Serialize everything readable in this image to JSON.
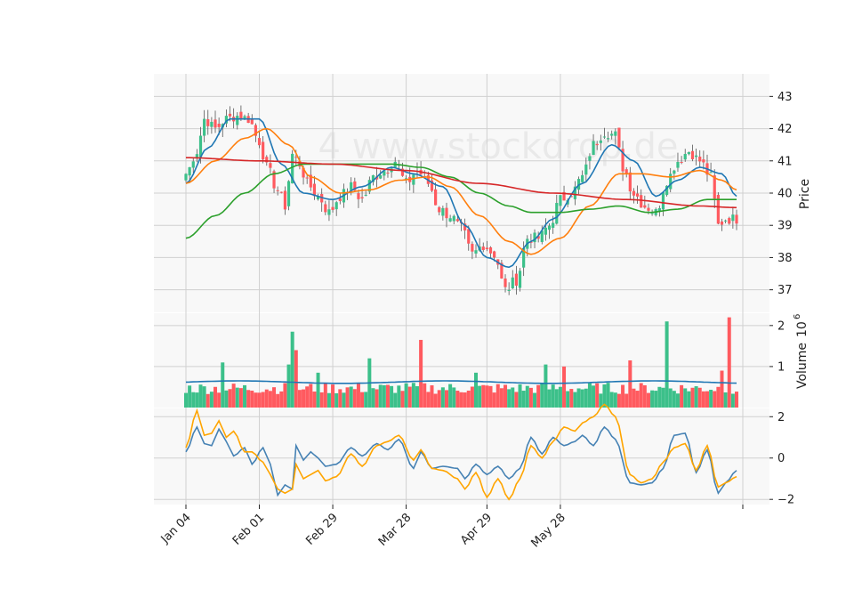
{
  "watermark": "4 www.stockdrop.de",
  "colors": {
    "up": "#3cc08a",
    "down": "#ff5a5f",
    "ma_blue": "#1f77b4",
    "ma_orange": "#ff7f0e",
    "ma_green": "#2ca02c",
    "ma_red": "#d62728",
    "osc_blue": "#4682b4",
    "osc_orange": "#ffa500",
    "vol_line": "#1f77b4",
    "panel_bg": "#f8f8f8",
    "grid": "#d0d0d0"
  },
  "chart_data": {
    "type": "candlestick",
    "x_ticks": [
      "Jan 04",
      "Feb 01",
      "Feb 29",
      "Mar 28",
      "Apr 29",
      "May 28"
    ],
    "price_panel": {
      "ylabel": "Price",
      "y_ticks": [
        37,
        38,
        39,
        40,
        41,
        42,
        43
      ],
      "ylim": [
        36.3,
        43.7
      ],
      "anchor_closes": [
        [
          0,
          40.6
        ],
        [
          3,
          41.3
        ],
        [
          5,
          42.3
        ],
        [
          8,
          42.0
        ],
        [
          11,
          42.3
        ],
        [
          14,
          42.4
        ],
        [
          17,
          42.3
        ],
        [
          20,
          41.6
        ],
        [
          22,
          40.8
        ],
        [
          25,
          40.1
        ],
        [
          27,
          39.6
        ],
        [
          29,
          41.2
        ],
        [
          31,
          40.9
        ],
        [
          33,
          40.3
        ],
        [
          36,
          39.9
        ],
        [
          39,
          39.4
        ],
        [
          42,
          39.9
        ],
        [
          45,
          40.2
        ],
        [
          48,
          39.8
        ],
        [
          51,
          40.5
        ],
        [
          54,
          40.7
        ],
        [
          57,
          41.0
        ],
        [
          60,
          40.3
        ],
        [
          63,
          40.7
        ],
        [
          66,
          40.3
        ],
        [
          69,
          39.5
        ],
        [
          72,
          39.3
        ],
        [
          75,
          38.9
        ],
        [
          78,
          38.1
        ],
        [
          81,
          38.4
        ],
        [
          84,
          38.1
        ],
        [
          87,
          37.0
        ],
        [
          90,
          37.3
        ],
        [
          93,
          38.6
        ],
        [
          96,
          38.6
        ],
        [
          99,
          39.0
        ],
        [
          102,
          39.8
        ],
        [
          105,
          40.0
        ],
        [
          108,
          40.5
        ],
        [
          111,
          41.5
        ],
        [
          114,
          41.9
        ],
        [
          117,
          41.8
        ],
        [
          119,
          40.8
        ],
        [
          122,
          40.0
        ],
        [
          125,
          39.6
        ],
        [
          128,
          39.4
        ],
        [
          131,
          40.4
        ],
        [
          134,
          41.0
        ],
        [
          137,
          41.3
        ],
        [
          140,
          41.0
        ],
        [
          143,
          40.5
        ],
        [
          145,
          39.0
        ],
        [
          147,
          39.2
        ],
        [
          150,
          39.2
        ]
      ],
      "series": [
        {
          "name": "ma_fast",
          "color_key": "ma_blue",
          "anchors": [
            [
              0,
              40.3
            ],
            [
              6,
              41.4
            ],
            [
              12,
              42.3
            ],
            [
              20,
              42.3
            ],
            [
              26,
              40.9
            ],
            [
              32,
              40.0
            ],
            [
              40,
              39.8
            ],
            [
              48,
              40.2
            ],
            [
              56,
              40.8
            ],
            [
              62,
              40.6
            ],
            [
              70,
              40.2
            ],
            [
              76,
              39.0
            ],
            [
              82,
              38.0
            ],
            [
              88,
              37.7
            ],
            [
              94,
              38.5
            ],
            [
              100,
              39.2
            ],
            [
              108,
              40.3
            ],
            [
              116,
              41.5
            ],
            [
              122,
              41.0
            ],
            [
              128,
              39.9
            ],
            [
              134,
              40.4
            ],
            [
              140,
              40.8
            ],
            [
              146,
              40.6
            ],
            [
              150,
              39.9
            ]
          ]
        },
        {
          "name": "ma_mid",
          "color_key": "ma_orange",
          "anchors": [
            [
              0,
              40.3
            ],
            [
              8,
              41.0
            ],
            [
              16,
              41.7
            ],
            [
              22,
              42.0
            ],
            [
              28,
              41.5
            ],
            [
              34,
              40.5
            ],
            [
              42,
              40.0
            ],
            [
              50,
              40.1
            ],
            [
              58,
              40.4
            ],
            [
              66,
              40.5
            ],
            [
              72,
              40.2
            ],
            [
              80,
              39.3
            ],
            [
              88,
              38.5
            ],
            [
              94,
              38.1
            ],
            [
              102,
              38.6
            ],
            [
              110,
              39.6
            ],
            [
              118,
              40.6
            ],
            [
              124,
              40.6
            ],
            [
              132,
              40.5
            ],
            [
              140,
              40.7
            ],
            [
              146,
              40.4
            ],
            [
              150,
              40.1
            ]
          ]
        },
        {
          "name": "ma_slow",
          "color_key": "ma_green",
          "anchors": [
            [
              0,
              38.6
            ],
            [
              8,
              39.3
            ],
            [
              16,
              40.0
            ],
            [
              24,
              40.6
            ],
            [
              32,
              40.9
            ],
            [
              40,
              40.9
            ],
            [
              48,
              40.9
            ],
            [
              56,
              40.9
            ],
            [
              64,
              40.8
            ],
            [
              72,
              40.5
            ],
            [
              80,
              40.0
            ],
            [
              88,
              39.6
            ],
            [
              94,
              39.4
            ],
            [
              102,
              39.4
            ],
            [
              110,
              39.5
            ],
            [
              118,
              39.6
            ],
            [
              126,
              39.4
            ],
            [
              134,
              39.5
            ],
            [
              142,
              39.8
            ],
            [
              150,
              39.8
            ]
          ]
        },
        {
          "name": "ma_long",
          "color_key": "ma_red",
          "anchors": [
            [
              0,
              41.1
            ],
            [
              20,
              41.0
            ],
            [
              40,
              40.9
            ],
            [
              60,
              40.7
            ],
            [
              80,
              40.3
            ],
            [
              100,
              40.0
            ],
            [
              120,
              39.8
            ],
            [
              140,
              39.6
            ],
            [
              150,
              39.55
            ]
          ]
        }
      ]
    },
    "volume_panel": {
      "ylabel": "Volume  10^6",
      "y_ticks": [
        1,
        2
      ],
      "ylim": [
        0,
        2.3
      ],
      "n_bars": 151,
      "base": 0.47,
      "spikes": [
        [
          10,
          1.1
        ],
        [
          28,
          1.05
        ],
        [
          29,
          1.85
        ],
        [
          30,
          1.4
        ],
        [
          36,
          0.85
        ],
        [
          50,
          1.2
        ],
        [
          64,
          1.65
        ],
        [
          79,
          0.85
        ],
        [
          98,
          1.05
        ],
        [
          103,
          1.0
        ],
        [
          121,
          1.15
        ],
        [
          131,
          2.1
        ],
        [
          148,
          2.2
        ],
        [
          146,
          0.9
        ]
      ],
      "avg_line": 0.62
    },
    "oscillator_panel": {
      "y_ticks": [
        -2,
        0,
        2
      ],
      "ylim": [
        -2.25,
        2.4
      ],
      "series": [
        {
          "name": "osc_fast",
          "color_key": "osc_blue",
          "anchors": [
            [
              0,
              0.3
            ],
            [
              3,
              1.5
            ],
            [
              5,
              0.7
            ],
            [
              7,
              0.6
            ],
            [
              9,
              1.4
            ],
            [
              11,
              0.8
            ],
            [
              13,
              0.1
            ],
            [
              16,
              0.5
            ],
            [
              18,
              -0.3
            ],
            [
              21,
              0.5
            ],
            [
              23,
              -0.3
            ],
            [
              25,
              -1.8
            ],
            [
              27,
              -1.3
            ],
            [
              29,
              -1.5
            ],
            [
              30,
              0.6
            ],
            [
              32,
              -0.1
            ],
            [
              34,
              0.3
            ],
            [
              36,
              0.0
            ],
            [
              38,
              -0.4
            ],
            [
              41,
              -0.3
            ],
            [
              45,
              0.5
            ],
            [
              48,
              0.1
            ],
            [
              52,
              0.7
            ],
            [
              55,
              0.4
            ],
            [
              58,
              0.9
            ],
            [
              62,
              -0.5
            ],
            [
              64,
              0.3
            ],
            [
              67,
              -0.5
            ],
            [
              70,
              -0.4
            ],
            [
              74,
              -0.5
            ],
            [
              76,
              -1.0
            ],
            [
              79,
              -0.3
            ],
            [
              82,
              -0.8
            ],
            [
              85,
              -0.4
            ],
            [
              88,
              -1.0
            ],
            [
              91,
              -0.5
            ],
            [
              94,
              1.0
            ],
            [
              97,
              0.2
            ],
            [
              100,
              1.0
            ],
            [
              103,
              0.6
            ],
            [
              106,
              0.8
            ],
            [
              108,
              1.1
            ],
            [
              111,
              0.6
            ],
            [
              114,
              1.5
            ],
            [
              117,
              0.9
            ],
            [
              121,
              -1.2
            ],
            [
              124,
              -1.3
            ],
            [
              127,
              -1.2
            ],
            [
              130,
              -0.5
            ],
            [
              133,
              1.1
            ],
            [
              136,
              1.2
            ],
            [
              139,
              -0.7
            ],
            [
              142,
              0.4
            ],
            [
              145,
              -1.7
            ],
            [
              147,
              -1.2
            ],
            [
              150,
              -0.6
            ]
          ]
        },
        {
          "name": "osc_slow",
          "color_key": "osc_orange",
          "anchors": [
            [
              0,
              0.5
            ],
            [
              3,
              2.3
            ],
            [
              5,
              1.1
            ],
            [
              7,
              1.2
            ],
            [
              9,
              1.8
            ],
            [
              11,
              1.0
            ],
            [
              13,
              1.3
            ],
            [
              16,
              0.3
            ],
            [
              18,
              0.3
            ],
            [
              21,
              -0.2
            ],
            [
              23,
              -0.8
            ],
            [
              25,
              -1.5
            ],
            [
              27,
              -1.7
            ],
            [
              29,
              -1.5
            ],
            [
              30,
              -0.3
            ],
            [
              32,
              -1.0
            ],
            [
              34,
              -0.8
            ],
            [
              36,
              -0.6
            ],
            [
              38,
              -1.1
            ],
            [
              41,
              -0.9
            ],
            [
              45,
              0.2
            ],
            [
              48,
              -0.4
            ],
            [
              52,
              0.6
            ],
            [
              55,
              0.8
            ],
            [
              58,
              1.1
            ],
            [
              62,
              -0.1
            ],
            [
              64,
              0.4
            ],
            [
              67,
              -0.5
            ],
            [
              70,
              -0.6
            ],
            [
              74,
              -1.0
            ],
            [
              76,
              -1.5
            ],
            [
              79,
              -0.7
            ],
            [
              82,
              -1.9
            ],
            [
              85,
              -1.0
            ],
            [
              88,
              -2.0
            ],
            [
              91,
              -1.0
            ],
            [
              94,
              0.6
            ],
            [
              97,
              0.0
            ],
            [
              100,
              0.8
            ],
            [
              103,
              1.5
            ],
            [
              106,
              1.3
            ],
            [
              108,
              1.7
            ],
            [
              111,
              2.0
            ],
            [
              114,
              2.6
            ],
            [
              117,
              2.0
            ],
            [
              121,
              -0.8
            ],
            [
              124,
              -1.2
            ],
            [
              127,
              -1.0
            ],
            [
              130,
              -0.2
            ],
            [
              133,
              0.5
            ],
            [
              136,
              0.7
            ],
            [
              139,
              -0.6
            ],
            [
              142,
              0.6
            ],
            [
              145,
              -1.4
            ],
            [
              147,
              -1.2
            ],
            [
              150,
              -0.9
            ]
          ]
        }
      ]
    },
    "n_candles": 151
  }
}
